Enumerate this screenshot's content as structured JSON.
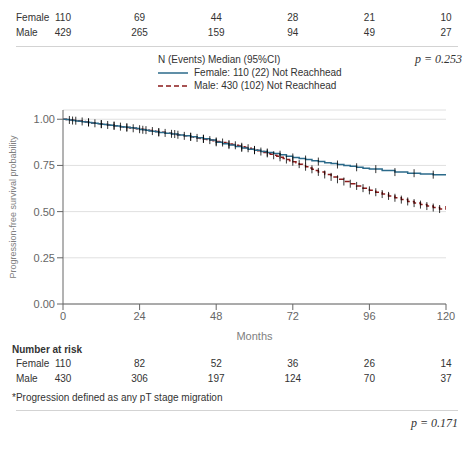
{
  "chart_data": {
    "type": "line",
    "x_label": "Months",
    "y_label": "Progression-free survival probability",
    "xlim": [
      0,
      120
    ],
    "ylim": [
      0.0,
      1.05
    ],
    "xticks": [
      0,
      24,
      48,
      72,
      96,
      120
    ],
    "yticks": [
      {
        "value": 0.0,
        "label": "0.00"
      },
      0.25,
      {
        "value": 0.5,
        "label": "0.50"
      },
      0.75,
      {
        "value": 1.0,
        "label": "1.00"
      }
    ],
    "grid": true,
    "legend_title": "N (Events) Median (95%CI)",
    "annotations": [
      "p = 0.253",
      "p = 0.171"
    ],
    "series": [
      {
        "name": "Female: 110 (22) Not Reachhead",
        "color": "#2b6a8a",
        "line_style": "solid",
        "x": [
          0,
          1,
          2,
          3,
          4,
          5,
          6,
          7,
          8,
          9,
          10,
          11,
          12,
          13,
          14,
          15,
          16,
          17,
          18,
          19,
          20,
          21,
          22,
          23,
          24,
          25,
          26,
          27,
          28,
          29,
          30,
          32,
          34,
          36,
          38,
          40,
          42,
          44,
          46,
          48,
          50,
          52,
          54,
          56,
          58,
          60,
          62,
          64,
          66,
          68,
          70,
          72,
          74,
          76,
          78,
          80,
          82,
          84,
          86,
          88,
          90,
          92,
          94,
          96,
          100,
          104,
          108,
          112,
          116,
          120
        ],
        "values": [
          1.0,
          0.998,
          0.996,
          0.993,
          0.991,
          0.989,
          0.987,
          0.985,
          0.983,
          0.98,
          0.978,
          0.975,
          0.973,
          0.971,
          0.969,
          0.967,
          0.965,
          0.963,
          0.96,
          0.958,
          0.956,
          0.954,
          0.952,
          0.95,
          0.945,
          0.943,
          0.94,
          0.937,
          0.935,
          0.932,
          0.928,
          0.924,
          0.92,
          0.915,
          0.91,
          0.905,
          0.9,
          0.895,
          0.888,
          0.875,
          0.868,
          0.86,
          0.852,
          0.845,
          0.838,
          0.832,
          0.826,
          0.82,
          0.815,
          0.808,
          0.8,
          0.793,
          0.787,
          0.782,
          0.776,
          0.771,
          0.765,
          0.76,
          0.755,
          0.75,
          0.745,
          0.74,
          0.735,
          0.73,
          0.722,
          0.714,
          0.708,
          0.703,
          0.7,
          0.7
        ],
        "censor_x": [
          3,
          8,
          12,
          16,
          20,
          25,
          30,
          35,
          40,
          44,
          48,
          52,
          56,
          60,
          64,
          68,
          72,
          76,
          80,
          86,
          92,
          98,
          104,
          110,
          116
        ],
        "censor_y": [
          0.993,
          0.983,
          0.973,
          0.965,
          0.956,
          0.943,
          0.928,
          0.92,
          0.905,
          0.895,
          0.875,
          0.86,
          0.845,
          0.832,
          0.82,
          0.808,
          0.793,
          0.782,
          0.771,
          0.755,
          0.74,
          0.73,
          0.714,
          0.708,
          0.7
        ]
      },
      {
        "name": "Male: 430 (102) Not Reachhead",
        "color": "#8b1a1a",
        "line_style": "dashed",
        "x": [
          0,
          1,
          2,
          3,
          4,
          5,
          6,
          7,
          8,
          9,
          10,
          11,
          12,
          13,
          14,
          15,
          16,
          17,
          18,
          19,
          20,
          21,
          22,
          23,
          24,
          25,
          26,
          27,
          28,
          29,
          30,
          31,
          32,
          33,
          34,
          35,
          36,
          37,
          38,
          39,
          40,
          41,
          42,
          43,
          44,
          45,
          46,
          47,
          48,
          49,
          50,
          51,
          52,
          53,
          54,
          55,
          56,
          57,
          58,
          59,
          60,
          61,
          62,
          63,
          64,
          65,
          66,
          67,
          68,
          69,
          70,
          71,
          72,
          73,
          74,
          75,
          76,
          77,
          78,
          79,
          80,
          82,
          84,
          86,
          88,
          90,
          92,
          94,
          96,
          98,
          100,
          102,
          104,
          106,
          108,
          110,
          112,
          114,
          116,
          118,
          120
        ],
        "values": [
          1.0,
          0.998,
          0.996,
          0.994,
          0.992,
          0.99,
          0.988,
          0.985,
          0.983,
          0.98,
          0.978,
          0.976,
          0.974,
          0.972,
          0.969,
          0.967,
          0.965,
          0.963,
          0.96,
          0.958,
          0.955,
          0.953,
          0.951,
          0.948,
          0.946,
          0.944,
          0.941,
          0.939,
          0.936,
          0.934,
          0.931,
          0.929,
          0.926,
          0.924,
          0.921,
          0.918,
          0.916,
          0.913,
          0.91,
          0.908,
          0.905,
          0.902,
          0.899,
          0.896,
          0.893,
          0.89,
          0.887,
          0.884,
          0.88,
          0.877,
          0.874,
          0.87,
          0.866,
          0.863,
          0.859,
          0.855,
          0.851,
          0.847,
          0.843,
          0.838,
          0.834,
          0.83,
          0.825,
          0.82,
          0.815,
          0.81,
          0.805,
          0.8,
          0.794,
          0.788,
          0.782,
          0.776,
          0.77,
          0.764,
          0.757,
          0.75,
          0.743,
          0.736,
          0.729,
          0.722,
          0.715,
          0.701,
          0.688,
          0.675,
          0.663,
          0.651,
          0.639,
          0.627,
          0.615,
          0.605,
          0.595,
          0.585,
          0.575,
          0.565,
          0.555,
          0.546,
          0.538,
          0.53,
          0.522,
          0.514,
          0.53
        ],
        "censor_x": [
          2,
          4,
          6,
          8,
          10,
          12,
          14,
          16,
          18,
          20,
          22,
          24,
          26,
          28,
          30,
          32,
          34,
          36,
          38,
          40,
          42,
          44,
          46,
          48,
          50,
          52,
          54,
          56,
          58,
          60,
          62,
          64,
          66,
          68,
          70,
          72,
          74,
          76,
          78,
          80,
          82,
          84,
          86,
          88,
          90,
          92,
          94,
          96,
          98,
          100,
          102,
          104,
          106,
          108,
          110,
          112,
          114,
          116,
          118
        ],
        "censor_y": [
          0.996,
          0.992,
          0.988,
          0.983,
          0.978,
          0.974,
          0.969,
          0.965,
          0.96,
          0.955,
          0.951,
          0.946,
          0.941,
          0.936,
          0.931,
          0.926,
          0.921,
          0.916,
          0.91,
          0.905,
          0.899,
          0.893,
          0.887,
          0.88,
          0.874,
          0.866,
          0.859,
          0.851,
          0.843,
          0.834,
          0.825,
          0.815,
          0.805,
          0.794,
          0.782,
          0.77,
          0.757,
          0.743,
          0.729,
          0.715,
          0.701,
          0.688,
          0.675,
          0.663,
          0.651,
          0.639,
          0.627,
          0.615,
          0.605,
          0.595,
          0.585,
          0.575,
          0.565,
          0.555,
          0.546,
          0.538,
          0.53,
          0.522,
          0.514
        ]
      }
    ],
    "risk_table": {
      "title": "Number at risk",
      "rows": [
        {
          "label": "Female",
          "values": [
            110,
            82,
            52,
            36,
            26,
            14
          ]
        },
        {
          "label": "Male",
          "values": [
            430,
            306,
            197,
            124,
            70,
            37
          ]
        }
      ]
    },
    "top_table": {
      "rows": [
        {
          "label": "Female",
          "values": [
            110,
            69,
            44,
            28,
            21,
            10
          ]
        },
        {
          "label": "Male",
          "values": [
            429,
            265,
            159,
            94,
            49,
            27
          ]
        }
      ]
    },
    "footnote": "*Progression defined as any pT stage migration"
  }
}
